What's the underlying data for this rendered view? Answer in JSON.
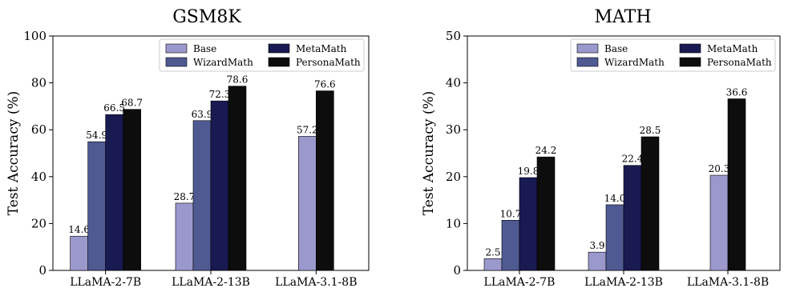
{
  "chart_data": [
    {
      "type": "bar",
      "title": "GSM8K",
      "ylabel": "Test Accuracy (%)",
      "xlabel": "",
      "ylim": [
        0,
        100
      ],
      "yticks": [
        0,
        20,
        40,
        60,
        80,
        100
      ],
      "categories": [
        "LLaMA-2-7B",
        "LLaMA-2-13B",
        "LLaMA-3.1-8B"
      ],
      "series": [
        {
          "name": "Base",
          "color": "#9b99cc",
          "values": [
            14.6,
            28.7,
            57.2
          ]
        },
        {
          "name": "WizardMath",
          "color": "#4f5a93",
          "values": [
            54.9,
            63.9,
            null
          ]
        },
        {
          "name": "MetaMath",
          "color": "#191a52",
          "values": [
            66.5,
            72.3,
            null
          ]
        },
        {
          "name": "PersonaMath",
          "color": "#0d0d0d",
          "values": [
            68.7,
            78.6,
            76.6
          ]
        }
      ],
      "legend": "top-right",
      "grid": false
    },
    {
      "type": "bar",
      "title": "MATH",
      "ylabel": "Test Accuracy (%)",
      "xlabel": "",
      "ylim": [
        0,
        50
      ],
      "yticks": [
        0,
        10,
        20,
        30,
        40,
        50
      ],
      "categories": [
        "LLaMA-2-7B",
        "LLaMA-2-13B",
        "LLaMA-3.1-8B"
      ],
      "series": [
        {
          "name": "Base",
          "color": "#9b99cc",
          "values": [
            2.5,
            3.9,
            20.3
          ]
        },
        {
          "name": "WizardMath",
          "color": "#4f5a93",
          "values": [
            10.7,
            14.0,
            null
          ]
        },
        {
          "name": "MetaMath",
          "color": "#191a52",
          "values": [
            19.8,
            22.4,
            null
          ]
        },
        {
          "name": "PersonaMath",
          "color": "#0d0d0d",
          "values": [
            24.2,
            28.5,
            36.6
          ]
        }
      ],
      "legend": "top-right",
      "grid": false
    }
  ]
}
